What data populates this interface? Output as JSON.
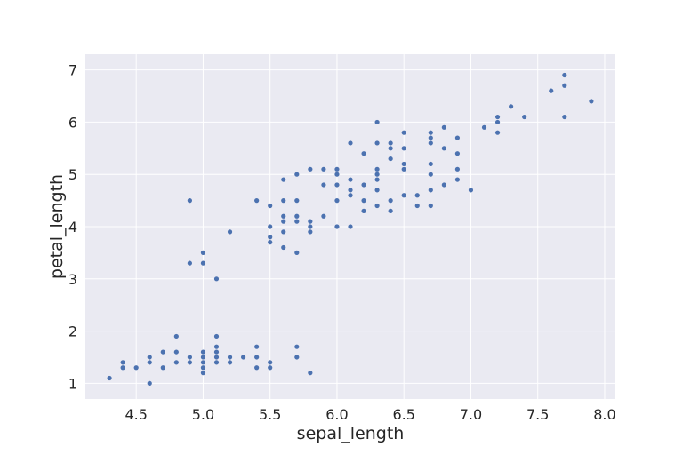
{
  "chart_data": {
    "type": "scatter",
    "title": "",
    "xlabel": "sepal_length",
    "ylabel": "petal_length",
    "xlim": [
      4.12,
      8.08
    ],
    "ylim": [
      0.7,
      7.3
    ],
    "xticks": [
      "4.5",
      "5.0",
      "5.5",
      "6.0",
      "6.5",
      "7.0",
      "7.5",
      "8.0"
    ],
    "yticks": [
      "1",
      "2",
      "3",
      "4",
      "5",
      "6",
      "7"
    ],
    "grid": true,
    "background": "#eaeaf2",
    "point_color": "#4c72b0",
    "points": [
      [
        4.3,
        1.1
      ],
      [
        4.4,
        1.3
      ],
      [
        4.4,
        1.4
      ],
      [
        4.5,
        1.3
      ],
      [
        4.6,
        1.0
      ],
      [
        4.6,
        1.4
      ],
      [
        4.6,
        1.5
      ],
      [
        4.7,
        1.3
      ],
      [
        4.7,
        1.6
      ],
      [
        4.8,
        1.4
      ],
      [
        4.8,
        1.6
      ],
      [
        4.8,
        1.9
      ],
      [
        4.9,
        1.4
      ],
      [
        4.9,
        1.5
      ],
      [
        4.9,
        3.3
      ],
      [
        4.9,
        4.5
      ],
      [
        5.0,
        1.2
      ],
      [
        5.0,
        1.3
      ],
      [
        5.0,
        1.4
      ],
      [
        5.0,
        1.5
      ],
      [
        5.0,
        1.6
      ],
      [
        5.0,
        3.3
      ],
      [
        5.0,
        3.5
      ],
      [
        5.1,
        1.4
      ],
      [
        5.1,
        1.5
      ],
      [
        5.1,
        1.6
      ],
      [
        5.1,
        1.7
      ],
      [
        5.1,
        1.9
      ],
      [
        5.1,
        3.0
      ],
      [
        5.2,
        1.4
      ],
      [
        5.2,
        1.5
      ],
      [
        5.2,
        3.9
      ],
      [
        5.3,
        1.5
      ],
      [
        5.4,
        1.3
      ],
      [
        5.4,
        1.5
      ],
      [
        5.4,
        1.7
      ],
      [
        5.4,
        4.5
      ],
      [
        5.5,
        1.3
      ],
      [
        5.5,
        1.4
      ],
      [
        5.5,
        3.7
      ],
      [
        5.5,
        3.8
      ],
      [
        5.5,
        4.0
      ],
      [
        5.5,
        4.4
      ],
      [
        5.6,
        3.6
      ],
      [
        5.6,
        3.9
      ],
      [
        5.6,
        4.1
      ],
      [
        5.6,
        4.2
      ],
      [
        5.6,
        4.5
      ],
      [
        5.6,
        4.9
      ],
      [
        5.7,
        1.5
      ],
      [
        5.7,
        1.7
      ],
      [
        5.7,
        3.5
      ],
      [
        5.7,
        4.1
      ],
      [
        5.7,
        4.2
      ],
      [
        5.7,
        4.5
      ],
      [
        5.7,
        5.0
      ],
      [
        5.8,
        1.2
      ],
      [
        5.8,
        3.9
      ],
      [
        5.8,
        4.0
      ],
      [
        5.8,
        4.1
      ],
      [
        5.8,
        5.1
      ],
      [
        5.9,
        4.2
      ],
      [
        5.9,
        4.8
      ],
      [
        5.9,
        5.1
      ],
      [
        6.0,
        4.0
      ],
      [
        6.0,
        4.5
      ],
      [
        6.0,
        4.8
      ],
      [
        6.0,
        5.0
      ],
      [
        6.0,
        5.1
      ],
      [
        6.1,
        4.0
      ],
      [
        6.1,
        4.6
      ],
      [
        6.1,
        4.7
      ],
      [
        6.1,
        4.9
      ],
      [
        6.1,
        5.6
      ],
      [
        6.2,
        4.3
      ],
      [
        6.2,
        4.5
      ],
      [
        6.2,
        4.8
      ],
      [
        6.2,
        5.4
      ],
      [
        6.3,
        4.4
      ],
      [
        6.3,
        4.7
      ],
      [
        6.3,
        4.9
      ],
      [
        6.3,
        5.0
      ],
      [
        6.3,
        5.1
      ],
      [
        6.3,
        5.6
      ],
      [
        6.3,
        6.0
      ],
      [
        6.4,
        4.3
      ],
      [
        6.4,
        4.5
      ],
      [
        6.4,
        5.3
      ],
      [
        6.4,
        5.5
      ],
      [
        6.4,
        5.6
      ],
      [
        6.5,
        4.6
      ],
      [
        6.5,
        5.1
      ],
      [
        6.5,
        5.2
      ],
      [
        6.5,
        5.5
      ],
      [
        6.5,
        5.8
      ],
      [
        6.6,
        4.4
      ],
      [
        6.6,
        4.6
      ],
      [
        6.7,
        4.4
      ],
      [
        6.7,
        4.7
      ],
      [
        6.7,
        5.0
      ],
      [
        6.7,
        5.2
      ],
      [
        6.7,
        5.6
      ],
      [
        6.7,
        5.7
      ],
      [
        6.7,
        5.8
      ],
      [
        6.8,
        4.8
      ],
      [
        6.8,
        5.5
      ],
      [
        6.8,
        5.9
      ],
      [
        6.9,
        4.9
      ],
      [
        6.9,
        5.1
      ],
      [
        6.9,
        5.4
      ],
      [
        6.9,
        5.7
      ],
      [
        7.0,
        4.7
      ],
      [
        7.1,
        5.9
      ],
      [
        7.2,
        5.8
      ],
      [
        7.2,
        6.0
      ],
      [
        7.2,
        6.1
      ],
      [
        7.3,
        6.3
      ],
      [
        7.4,
        6.1
      ],
      [
        7.6,
        6.6
      ],
      [
        7.7,
        6.1
      ],
      [
        7.7,
        6.7
      ],
      [
        7.7,
        6.9
      ],
      [
        7.9,
        6.4
      ]
    ]
  }
}
